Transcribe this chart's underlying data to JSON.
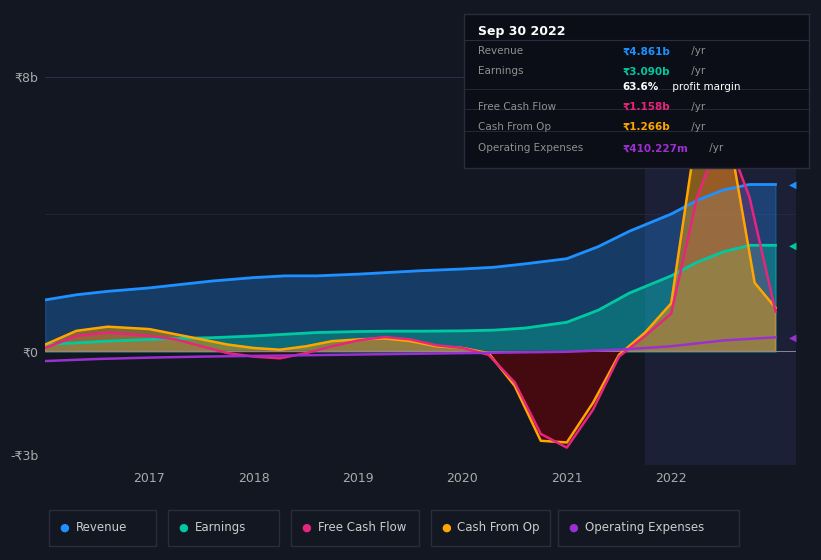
{
  "bg_color": "#131722",
  "plot_bg_color": "#131722",
  "highlight_bg": "#1c2036",
  "title": "Sep 30 2022",
  "ylabel_top": "₹8b",
  "ylabel_zero": "₹0",
  "ylabel_bottom": "-₹3b",
  "x_ticks": [
    2017,
    2018,
    2019,
    2020,
    2021,
    2022
  ],
  "x_range": [
    2016.0,
    2023.2
  ],
  "y_range": [
    -3300000000.0,
    8600000000.0
  ],
  "colors": {
    "revenue": "#1e90ff",
    "earnings": "#00c8a0",
    "free_cash_flow": "#e8257d",
    "cash_from_op": "#ffa500",
    "operating_expenses": "#9b30d0"
  },
  "revenue_x": [
    2016.0,
    2016.3,
    2016.6,
    2017.0,
    2017.3,
    2017.6,
    2018.0,
    2018.3,
    2018.6,
    2019.0,
    2019.3,
    2019.6,
    2020.0,
    2020.3,
    2020.6,
    2021.0,
    2021.3,
    2021.6,
    2022.0,
    2022.25,
    2022.5,
    2022.75,
    2023.0
  ],
  "revenue_y": [
    1500000000.0,
    1650000000.0,
    1750000000.0,
    1850000000.0,
    1950000000.0,
    2050000000.0,
    2150000000.0,
    2200000000.0,
    2200000000.0,
    2250000000.0,
    2300000000.0,
    2350000000.0,
    2400000000.0,
    2450000000.0,
    2550000000.0,
    2700000000.0,
    3050000000.0,
    3500000000.0,
    4000000000.0,
    4400000000.0,
    4700000000.0,
    4860000000.0,
    4860000000.0
  ],
  "earnings_x": [
    2016.0,
    2016.3,
    2016.6,
    2017.0,
    2017.3,
    2017.6,
    2018.0,
    2018.3,
    2018.6,
    2019.0,
    2019.3,
    2019.6,
    2020.0,
    2020.3,
    2020.6,
    2021.0,
    2021.3,
    2021.6,
    2022.0,
    2022.25,
    2022.5,
    2022.75,
    2023.0
  ],
  "earnings_y": [
    200000000.0,
    250000000.0,
    300000000.0,
    350000000.0,
    380000000.0,
    400000000.0,
    450000000.0,
    500000000.0,
    550000000.0,
    580000000.0,
    590000000.0,
    590000000.0,
    600000000.0,
    620000000.0,
    680000000.0,
    850000000.0,
    1200000000.0,
    1700000000.0,
    2200000000.0,
    2600000000.0,
    2900000000.0,
    3090000000.0,
    3090000000.0
  ],
  "cash_from_op_x": [
    2016.0,
    2016.3,
    2016.6,
    2017.0,
    2017.25,
    2017.5,
    2017.75,
    2018.0,
    2018.25,
    2018.5,
    2018.75,
    2019.0,
    2019.25,
    2019.5,
    2019.75,
    2020.0,
    2020.25,
    2020.5,
    2020.75,
    2021.0,
    2021.25,
    2021.5,
    2021.75,
    2022.0,
    2022.2,
    2022.4,
    2022.6,
    2022.8,
    2023.0
  ],
  "cash_from_op_y": [
    200000000.0,
    600000000.0,
    720000000.0,
    650000000.0,
    500000000.0,
    350000000.0,
    200000000.0,
    100000000.0,
    50000000.0,
    150000000.0,
    300000000.0,
    350000000.0,
    380000000.0,
    300000000.0,
    150000000.0,
    100000000.0,
    -50000000.0,
    -1000000000.0,
    -2600000000.0,
    -2650000000.0,
    -1500000000.0,
    -100000000.0,
    550000000.0,
    1400000000.0,
    5500000000.0,
    7800000000.0,
    5500000000.0,
    2000000000.0,
    1270000000.0
  ],
  "free_cash_flow_x": [
    2016.0,
    2016.3,
    2016.6,
    2017.0,
    2017.25,
    2017.5,
    2017.75,
    2018.0,
    2018.25,
    2018.5,
    2018.75,
    2019.0,
    2019.25,
    2019.5,
    2019.75,
    2020.0,
    2020.25,
    2020.5,
    2020.75,
    2021.0,
    2021.25,
    2021.5,
    2021.75,
    2022.0,
    2022.25,
    2022.5,
    2022.75,
    2023.0
  ],
  "free_cash_flow_y": [
    100000000.0,
    450000000.0,
    550000000.0,
    450000000.0,
    350000000.0,
    150000000.0,
    -50000000.0,
    -150000000.0,
    -200000000.0,
    -50000000.0,
    150000000.0,
    320000000.0,
    420000000.0,
    350000000.0,
    180000000.0,
    100000000.0,
    -100000000.0,
    -900000000.0,
    -2400000000.0,
    -2800000000.0,
    -1700000000.0,
    -150000000.0,
    450000000.0,
    1100000000.0,
    4500000000.0,
    6500000000.0,
    4500000000.0,
    1160000000.0
  ],
  "operating_expenses_x": [
    2016.0,
    2016.5,
    2017.0,
    2017.5,
    2018.0,
    2018.5,
    2019.0,
    2019.5,
    2020.0,
    2020.5,
    2021.0,
    2021.5,
    2022.0,
    2022.5,
    2023.0
  ],
  "operating_expenses_y": [
    -280000000.0,
    -220000000.0,
    -180000000.0,
    -150000000.0,
    -130000000.0,
    -110000000.0,
    -90000000.0,
    -70000000.0,
    -50000000.0,
    -30000000.0,
    -10000000.0,
    50000000.0,
    150000000.0,
    320000000.0,
    410000000.0
  ],
  "tooltip": {
    "date": "Sep 30 2022",
    "rows": [
      {
        "label": "Revenue",
        "value": "₹4.861b",
        "suffix": " /yr",
        "color": "#1e90ff",
        "divider_before": true
      },
      {
        "label": "Earnings",
        "value": "₹3.090b",
        "suffix": " /yr",
        "color": "#00c8a0",
        "divider_before": false
      },
      {
        "label": "",
        "value": "63.6%",
        "suffix": " profit margin",
        "color": "white",
        "divider_before": false
      },
      {
        "label": "Free Cash Flow",
        "value": "₹1.158b",
        "suffix": " /yr",
        "color": "#e8257d",
        "divider_before": true
      },
      {
        "label": "Cash From Op",
        "value": "₹1.266b",
        "suffix": " /yr",
        "color": "#ffa500",
        "divider_before": true
      },
      {
        "label": "Operating Expenses",
        "value": "₹410.227m",
        "suffix": " /yr",
        "color": "#9b30d0",
        "divider_before": true
      }
    ]
  },
  "legend": [
    {
      "label": "Revenue",
      "color": "#1e90ff"
    },
    {
      "label": "Earnings",
      "color": "#00c8a0"
    },
    {
      "label": "Free Cash Flow",
      "color": "#e8257d"
    },
    {
      "label": "Cash From Op",
      "color": "#ffa500"
    },
    {
      "label": "Operating Expenses",
      "color": "#9b30d0"
    }
  ]
}
